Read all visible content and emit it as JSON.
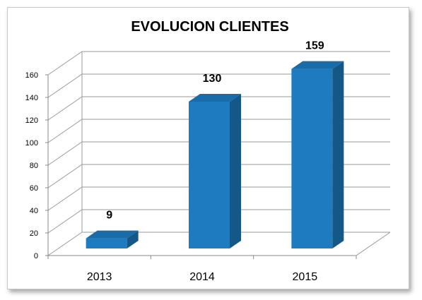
{
  "chart_data": {
    "type": "bar",
    "title": "EVOLUCION CLIENTES",
    "categories": [
      "2013",
      "2014",
      "2015"
    ],
    "values": [
      9,
      130,
      159
    ],
    "data_labels": [
      "9",
      "130",
      "159"
    ],
    "ylim": [
      0,
      160
    ],
    "yticks": [
      0,
      20,
      40,
      60,
      80,
      100,
      120,
      140,
      160
    ],
    "xlabel": "",
    "ylabel": "",
    "grid": true,
    "three_d": true,
    "bar_color": "#1F7BC0",
    "bar_side_color": "#145887",
    "bar_top_color": "#1A6CA8"
  }
}
